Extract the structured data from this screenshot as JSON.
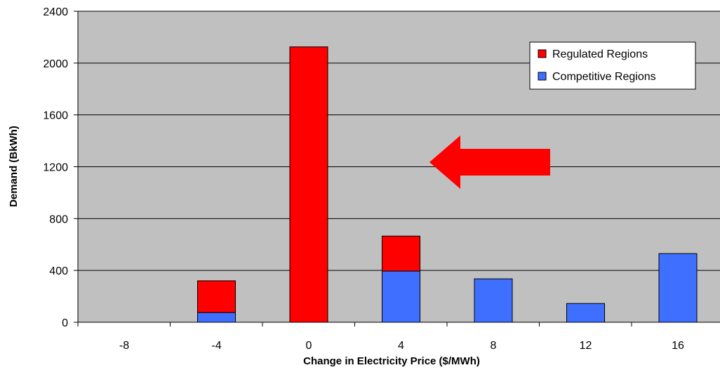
{
  "chart_data": {
    "type": "bar",
    "stacked": true,
    "title": "",
    "xlabel": "Change in Electricity Price ($/MWh)",
    "ylabel": "Demand (BkWh)",
    "categories": [
      "-8",
      "-4",
      "0",
      "4",
      "8",
      "12",
      "16"
    ],
    "yticks": [
      "0",
      "400",
      "800",
      "1200",
      "1600",
      "2000",
      "2400"
    ],
    "ylim": [
      0,
      2400
    ],
    "grid": true,
    "legend_position": "top-right",
    "series": [
      {
        "name": "Competitive Regions",
        "color": "#3f6fff",
        "values": [
          0,
          75,
          0,
          395,
          335,
          145,
          530
        ]
      },
      {
        "name": "Regulated Regions",
        "color": "#ff0000",
        "values": [
          0,
          245,
          2125,
          270,
          0,
          0,
          0
        ]
      }
    ],
    "annotation": {
      "shape": "arrow",
      "direction": "left",
      "color": "#ff0000"
    },
    "colors": {
      "plot_background": "#c0c0c0",
      "gridline": "#000000"
    }
  }
}
